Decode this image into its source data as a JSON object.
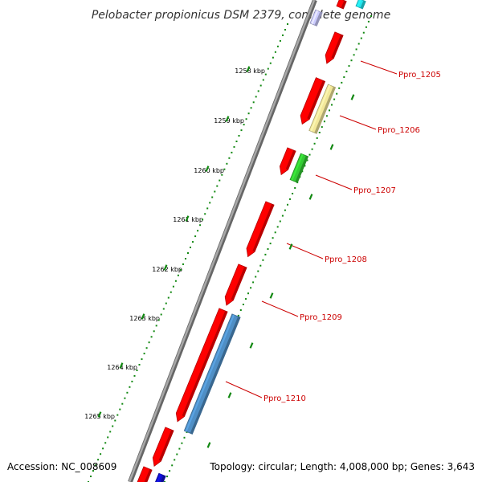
{
  "title": "Pelobacter propionicus DSM 2379, complete genome",
  "footer": {
    "accession": "Accession: NC_008609",
    "summary": "Topology: circular; Length: 4,008,000 bp; Genes: 3,643"
  },
  "ticks": [
    "1258 kbp",
    "1259 kbp",
    "1260 kbp",
    "1261 kbp",
    "1262 kbp",
    "1263 kbp",
    "1264 kbp",
    "1265 kbp"
  ],
  "gene_labels": [
    "Ppro_1205",
    "Ppro_1206",
    "Ppro_1207",
    "Ppro_1208",
    "Ppro_1209",
    "Ppro_1210"
  ],
  "colors": {
    "gene_red": "#ff0000",
    "gene_yellow": "#f3e89a",
    "gene_green": "#33cc33",
    "gene_blue": "#4f8fc6",
    "gene_cyan": "#22e5ee",
    "gene_lavender": "#ccccff",
    "gene_navy": "#1010cc",
    "backbone": "#8a8a8a",
    "dots": "#118811",
    "label": "#cc0000"
  }
}
